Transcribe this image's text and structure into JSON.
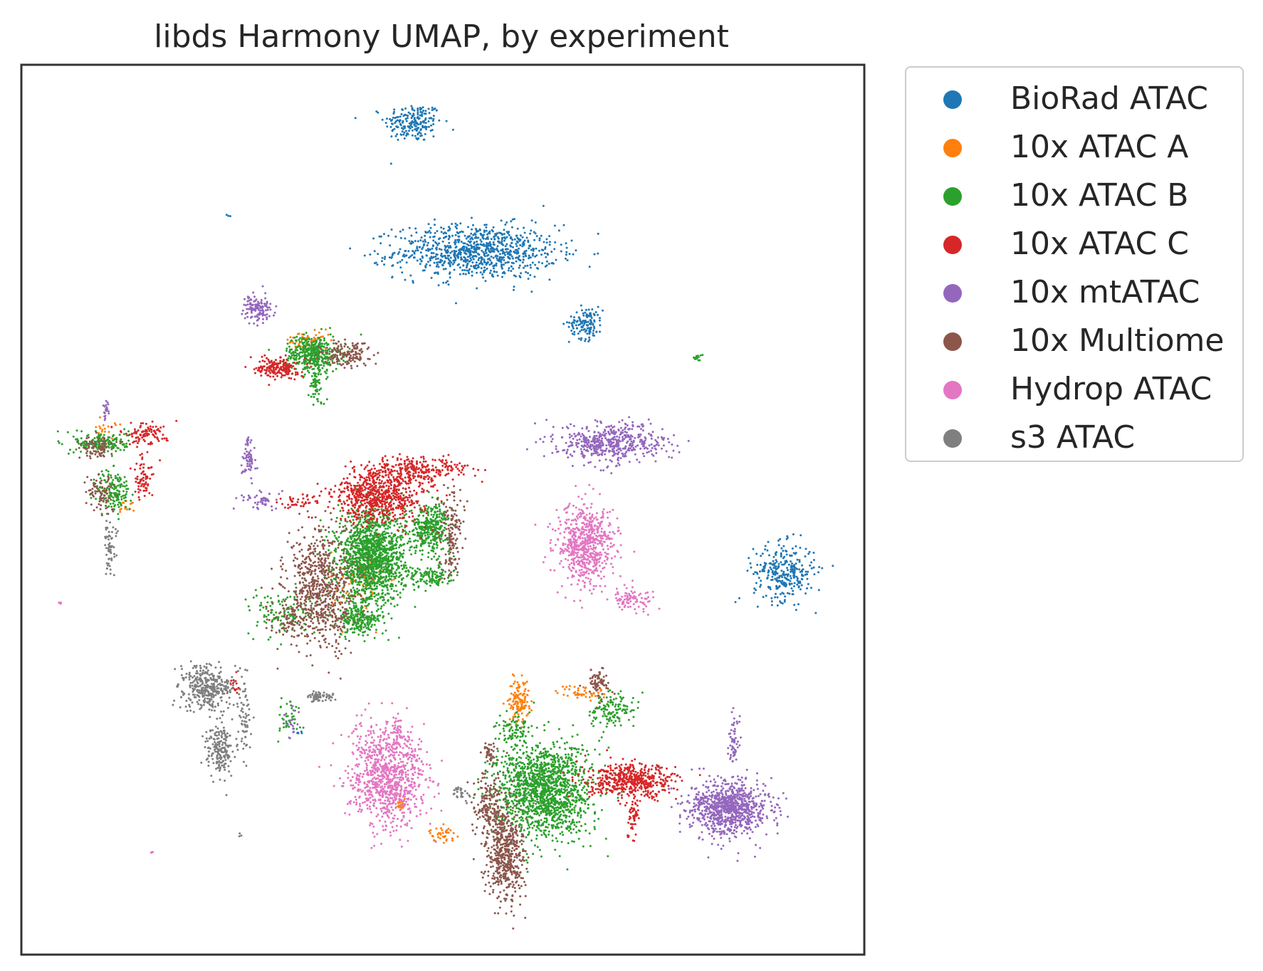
{
  "chart_data": {
    "type": "scatter",
    "title": "libds Harmony UMAP, by experiment",
    "xlabel": "",
    "ylabel": "",
    "xlim": [
      0,
      100
    ],
    "ylim": [
      0,
      100
    ],
    "ticks": "none",
    "grid": false,
    "legend_position": "outside-right",
    "series": [
      {
        "name": "BioRad ATAC",
        "color": "#1f77b4",
        "clusters": [
          {
            "x": 46.5,
            "y": 93.5,
            "sx": 1.7,
            "sy": 1.1,
            "n": 200
          },
          {
            "x": 54.0,
            "y": 79.0,
            "sx": 4.8,
            "sy": 1.5,
            "n": 900
          },
          {
            "x": 67.0,
            "y": 71.0,
            "sx": 1.0,
            "sy": 0.9,
            "n": 130
          },
          {
            "x": 90.5,
            "y": 43.0,
            "sx": 1.8,
            "sy": 1.6,
            "n": 300
          },
          {
            "x": 24.5,
            "y": 83.0,
            "sx": 0.1,
            "sy": 0.1,
            "n": 3
          },
          {
            "x": 33.0,
            "y": 25.0,
            "sx": 0.2,
            "sy": 0.2,
            "n": 5
          }
        ]
      },
      {
        "name": "10x ATAC A",
        "color": "#ff7f0e",
        "clusters": [
          {
            "x": 34.0,
            "y": 69.0,
            "sx": 1.4,
            "sy": 0.5,
            "n": 60
          },
          {
            "x": 59.0,
            "y": 28.5,
            "sx": 0.6,
            "sy": 1.2,
            "n": 130
          },
          {
            "x": 66.5,
            "y": 29.5,
            "sx": 1.5,
            "sy": 0.4,
            "n": 50
          },
          {
            "x": 50.0,
            "y": 13.5,
            "sx": 0.8,
            "sy": 0.4,
            "n": 40
          },
          {
            "x": 45.0,
            "y": 17.0,
            "sx": 0.3,
            "sy": 0.6,
            "n": 25
          },
          {
            "x": 40.0,
            "y": 41.5,
            "sx": 1.6,
            "sy": 2.0,
            "n": 80
          },
          {
            "x": 10.0,
            "y": 59.0,
            "sx": 0.6,
            "sy": 0.5,
            "n": 20
          },
          {
            "x": 12.5,
            "y": 50.5,
            "sx": 0.5,
            "sy": 0.5,
            "n": 15
          }
        ]
      },
      {
        "name": "10x ATAC B",
        "color": "#2ca02c",
        "clusters": [
          {
            "x": 34.5,
            "y": 67.5,
            "sx": 1.6,
            "sy": 1.0,
            "n": 420
          },
          {
            "x": 35.0,
            "y": 64.0,
            "sx": 0.5,
            "sy": 1.2,
            "n": 60
          },
          {
            "x": 41.5,
            "y": 44.5,
            "sx": 2.0,
            "sy": 2.6,
            "n": 1500
          },
          {
            "x": 40.0,
            "y": 37.5,
            "sx": 1.2,
            "sy": 0.8,
            "n": 200
          },
          {
            "x": 48.5,
            "y": 48.0,
            "sx": 1.2,
            "sy": 1.3,
            "n": 350
          },
          {
            "x": 48.5,
            "y": 42.5,
            "sx": 1.3,
            "sy": 0.6,
            "n": 120
          },
          {
            "x": 31.0,
            "y": 38.5,
            "sx": 2.0,
            "sy": 1.3,
            "n": 120
          },
          {
            "x": 9.5,
            "y": 57.5,
            "sx": 1.6,
            "sy": 0.6,
            "n": 180
          },
          {
            "x": 11.0,
            "y": 52.0,
            "sx": 1.0,
            "sy": 1.3,
            "n": 160
          },
          {
            "x": 62.0,
            "y": 18.5,
            "sx": 2.8,
            "sy": 2.6,
            "n": 1500
          },
          {
            "x": 58.5,
            "y": 25.0,
            "sx": 1.1,
            "sy": 0.8,
            "n": 80
          },
          {
            "x": 70.0,
            "y": 27.5,
            "sx": 1.3,
            "sy": 1.0,
            "n": 130
          },
          {
            "x": 32.0,
            "y": 26.5,
            "sx": 0.8,
            "sy": 1.0,
            "n": 40
          },
          {
            "x": 80.0,
            "y": 67.0,
            "sx": 0.4,
            "sy": 0.2,
            "n": 15
          }
        ]
      },
      {
        "name": "10x ATAC C",
        "color": "#d62728",
        "clusters": [
          {
            "x": 30.5,
            "y": 66.0,
            "sx": 1.2,
            "sy": 0.6,
            "n": 180
          },
          {
            "x": 42.5,
            "y": 51.5,
            "sx": 2.6,
            "sy": 1.5,
            "n": 700
          },
          {
            "x": 47.0,
            "y": 54.5,
            "sx": 3.0,
            "sy": 0.8,
            "n": 250
          },
          {
            "x": 14.5,
            "y": 58.5,
            "sx": 1.4,
            "sy": 0.6,
            "n": 100
          },
          {
            "x": 14.5,
            "y": 53.5,
            "sx": 0.6,
            "sy": 1.2,
            "n": 70
          },
          {
            "x": 72.5,
            "y": 19.5,
            "sx": 2.6,
            "sy": 0.9,
            "n": 500
          },
          {
            "x": 72.5,
            "y": 16.0,
            "sx": 0.4,
            "sy": 1.4,
            "n": 60
          },
          {
            "x": 33.0,
            "y": 51.0,
            "sx": 1.3,
            "sy": 0.4,
            "n": 40
          },
          {
            "x": 25.5,
            "y": 30.5,
            "sx": 0.3,
            "sy": 0.4,
            "n": 15
          }
        ]
      },
      {
        "name": "10x mtATAC",
        "color": "#9467bd",
        "clusters": [
          {
            "x": 28.0,
            "y": 72.5,
            "sx": 0.8,
            "sy": 0.8,
            "n": 120
          },
          {
            "x": 70.0,
            "y": 57.5,
            "sx": 3.2,
            "sy": 1.1,
            "n": 500
          },
          {
            "x": 27.0,
            "y": 56.0,
            "sx": 0.4,
            "sy": 1.3,
            "n": 60
          },
          {
            "x": 28.5,
            "y": 51.0,
            "sx": 1.3,
            "sy": 0.5,
            "n": 50
          },
          {
            "x": 10.0,
            "y": 61.5,
            "sx": 0.2,
            "sy": 0.6,
            "n": 20
          },
          {
            "x": 84.0,
            "y": 16.5,
            "sx": 2.3,
            "sy": 1.5,
            "n": 900
          },
          {
            "x": 84.5,
            "y": 23.5,
            "sx": 0.3,
            "sy": 1.4,
            "n": 60
          },
          {
            "x": 32.0,
            "y": 26.0,
            "sx": 0.4,
            "sy": 0.8,
            "n": 20
          }
        ]
      },
      {
        "name": "10x Multiome",
        "color": "#8c564b",
        "clusters": [
          {
            "x": 38.5,
            "y": 67.5,
            "sx": 1.5,
            "sy": 0.8,
            "n": 150
          },
          {
            "x": 35.5,
            "y": 41.0,
            "sx": 2.0,
            "sy": 3.2,
            "n": 700
          },
          {
            "x": 51.0,
            "y": 47.5,
            "sx": 0.7,
            "sy": 2.5,
            "n": 150
          },
          {
            "x": 9.0,
            "y": 57.0,
            "sx": 1.0,
            "sy": 0.6,
            "n": 80
          },
          {
            "x": 9.5,
            "y": 52.0,
            "sx": 0.8,
            "sy": 1.0,
            "n": 80
          },
          {
            "x": 57.5,
            "y": 11.0,
            "sx": 1.1,
            "sy": 2.6,
            "n": 500
          },
          {
            "x": 55.5,
            "y": 16.5,
            "sx": 1.0,
            "sy": 2.0,
            "n": 200
          },
          {
            "x": 68.5,
            "y": 30.5,
            "sx": 0.6,
            "sy": 0.8,
            "n": 70
          },
          {
            "x": 55.5,
            "y": 22.5,
            "sx": 0.5,
            "sy": 0.6,
            "n": 40
          },
          {
            "x": 31.5,
            "y": 37.5,
            "sx": 1.0,
            "sy": 1.3,
            "n": 70
          }
        ]
      },
      {
        "name": "Hydrop ATAC",
        "color": "#e377c2",
        "clusters": [
          {
            "x": 67.0,
            "y": 46.0,
            "sx": 1.7,
            "sy": 2.3,
            "n": 650
          },
          {
            "x": 72.5,
            "y": 40.0,
            "sx": 1.4,
            "sy": 0.6,
            "n": 90
          },
          {
            "x": 43.5,
            "y": 20.0,
            "sx": 2.3,
            "sy": 2.7,
            "n": 900
          },
          {
            "x": 44.5,
            "y": 25.0,
            "sx": 0.4,
            "sy": 1.0,
            "n": 40
          },
          {
            "x": 4.5,
            "y": 39.5,
            "sx": 0.1,
            "sy": 0.1,
            "n": 3
          },
          {
            "x": 15.5,
            "y": 11.5,
            "sx": 0.1,
            "sy": 0.1,
            "n": 3
          }
        ]
      },
      {
        "name": "s3 ATAC",
        "color": "#7f7f7f",
        "clusters": [
          {
            "x": 22.0,
            "y": 30.0,
            "sx": 1.5,
            "sy": 1.3,
            "n": 350
          },
          {
            "x": 23.5,
            "y": 23.0,
            "sx": 0.8,
            "sy": 1.4,
            "n": 180
          },
          {
            "x": 26.5,
            "y": 27.0,
            "sx": 0.4,
            "sy": 2.2,
            "n": 60
          },
          {
            "x": 35.5,
            "y": 29.0,
            "sx": 0.8,
            "sy": 0.3,
            "n": 60
          },
          {
            "x": 10.5,
            "y": 46.0,
            "sx": 0.4,
            "sy": 1.5,
            "n": 60
          },
          {
            "x": 52.0,
            "y": 18.0,
            "sx": 0.8,
            "sy": 0.5,
            "n": 25
          },
          {
            "x": 26.0,
            "y": 13.5,
            "sx": 0.1,
            "sy": 0.1,
            "n": 3
          }
        ]
      }
    ]
  }
}
